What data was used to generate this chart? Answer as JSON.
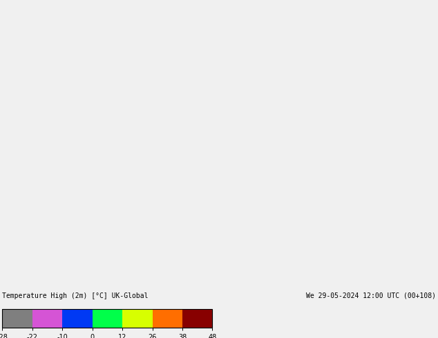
{
  "title_left": "Temperature High (2m) [°C] UK-Global",
  "title_right": "We 29-05-2024 12:00 UTC (00+108)",
  "colorbar_ticks": [
    -28,
    -22,
    -10,
    0,
    12,
    26,
    38,
    48
  ],
  "colorbar_colors": [
    "#808080",
    "#c0c0c0",
    "#e0e0e0",
    "#cc00cc",
    "#8800aa",
    "#0000ff",
    "#0055ff",
    "#00aaff",
    "#00ffff",
    "#00ff88",
    "#00ff00",
    "#88ff00",
    "#ffff00",
    "#ffcc00",
    "#ff8800",
    "#ff4400",
    "#ff0000",
    "#cc0000",
    "#880000"
  ],
  "background_color": "#f0f0f0",
  "land_color": "#b3e6b3",
  "sea_color": "#e8e8f0",
  "border_color": "#1a1a1a",
  "map_background": "#dce8f0",
  "fig_width": 6.34,
  "fig_height": 4.9,
  "dpi": 100
}
